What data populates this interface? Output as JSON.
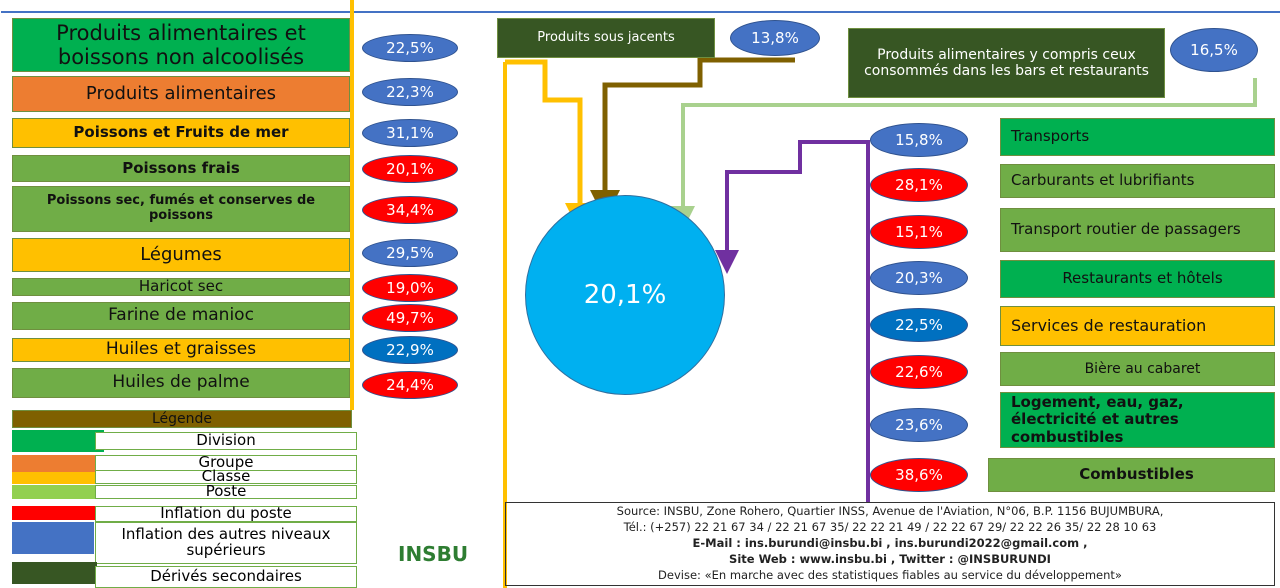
{
  "left": [
    {
      "label": "Produits alimentaires et boissons  non alcoolisés",
      "value": "22,5%",
      "color": "#00b050",
      "ellipse": "#4472c4"
    },
    {
      "label": "Produits alimentaires",
      "value": "22,3%",
      "color": "#ed7d31",
      "ellipse": "#4472c4"
    },
    {
      "label": "Poissons et Fruits de mer",
      "value": "31,1%",
      "color": "#ffc000",
      "ellipse": "#4472c4"
    },
    {
      "label": "Poissons frais",
      "value": "20,1%",
      "color": "#70ad47",
      "ellipse": "#ff0000"
    },
    {
      "label": "Poissons sec, fumés et conserves de poissons",
      "value": "34,4%",
      "color": "#70ad47",
      "ellipse": "#ff0000"
    },
    {
      "label": "Légumes",
      "value": "29,5%",
      "color": "#ffc000",
      "ellipse": "#4472c4"
    },
    {
      "label": "Haricot sec",
      "value": "19,0%",
      "color": "#70ad47",
      "ellipse": "#ff0000"
    },
    {
      "label": "Farine de manioc",
      "value": "49,7%",
      "color": "#70ad47",
      "ellipse": "#ff0000"
    },
    {
      "label": "Huiles et graisses",
      "value": "22,9%",
      "color": "#ffc000",
      "ellipse": "#0070c0"
    },
    {
      "label": "Huiles de palme",
      "value": "24,4%",
      "color": "#70ad47",
      "ellipse": "#ff0000"
    }
  ],
  "top": [
    {
      "label": "Produits sous jacents",
      "value": "13,8%",
      "color": "#375623",
      "ellipse": "#4472c4"
    },
    {
      "label": "Produits alimentaires y compris ceux  consommés dans les bars et restaurants",
      "value": "16,5%",
      "color": "#375623",
      "ellipse": "#4472c4"
    }
  ],
  "center": "20,1%",
  "right": [
    {
      "label": "Transports",
      "value": "15,8%",
      "color": "#00b050",
      "ellipse": "#4472c4"
    },
    {
      "label": "Carburants et lubrifiants",
      "value": "28,1%",
      "color": "#70ad47",
      "ellipse": "#ff0000"
    },
    {
      "label": "Transport routier de passagers",
      "value": "15,1%",
      "color": "#70ad47",
      "ellipse": "#ff0000"
    },
    {
      "label": "Restaurants et hôtels",
      "value": "20,3%",
      "color": "#00b050",
      "ellipse": "#4472c4"
    },
    {
      "label": "Services de restauration",
      "value": "22,5%",
      "color": "#ffc000",
      "ellipse": "#0070c0"
    },
    {
      "label": "Bière au cabaret",
      "value": "22,6%",
      "color": "#70ad47",
      "ellipse": "#ff0000"
    },
    {
      "label": "Logement, eau, gaz, électricité et autres combustibles",
      "value": "23,6%",
      "color": "#00b050",
      "ellipse": "#4472c4"
    },
    {
      "label": "Combustibles",
      "value": "38,6%",
      "color": "#70ad47",
      "ellipse": "#ff0000"
    }
  ],
  "legend": {
    "title": "Légende",
    "items": [
      {
        "label": "Division",
        "color": "#00b050"
      },
      {
        "label": "Groupe",
        "color": "#ed7d31"
      },
      {
        "label": "Classe",
        "color": "#ffc000"
      },
      {
        "label": "Poste",
        "color": "#92d050"
      },
      {
        "label": "Inflation du  poste",
        "color": "#ff0000"
      },
      {
        "label": "Inflation des autres niveaux supérieurs",
        "color": "#4472c4"
      },
      {
        "label": "Dérivés secondaires",
        "color": "#375623"
      }
    ]
  },
  "logo": "INSBU",
  "source": [
    "Source: INSBU, Zone Rohero, Quartier INSS, Avenue de l'Aviation, N°06, B.P. 1156 BUJUMBURA,",
    "Tél.: (+257) 22 21 67 34 /  22 21 67 35/ 22 22 21 49 / 22 22 67 29/ 22 22 26 35/ 22 28 10 63",
    "E-Mail : ins.burundi@insbu.bi  , ins.burundi2022@gmail.com ,",
    "Site Web : www.insbu.bi  , Twitter : @INSBURUNDI",
    "Devise: «En marche avec des statistiques fiables au service du développement»"
  ]
}
